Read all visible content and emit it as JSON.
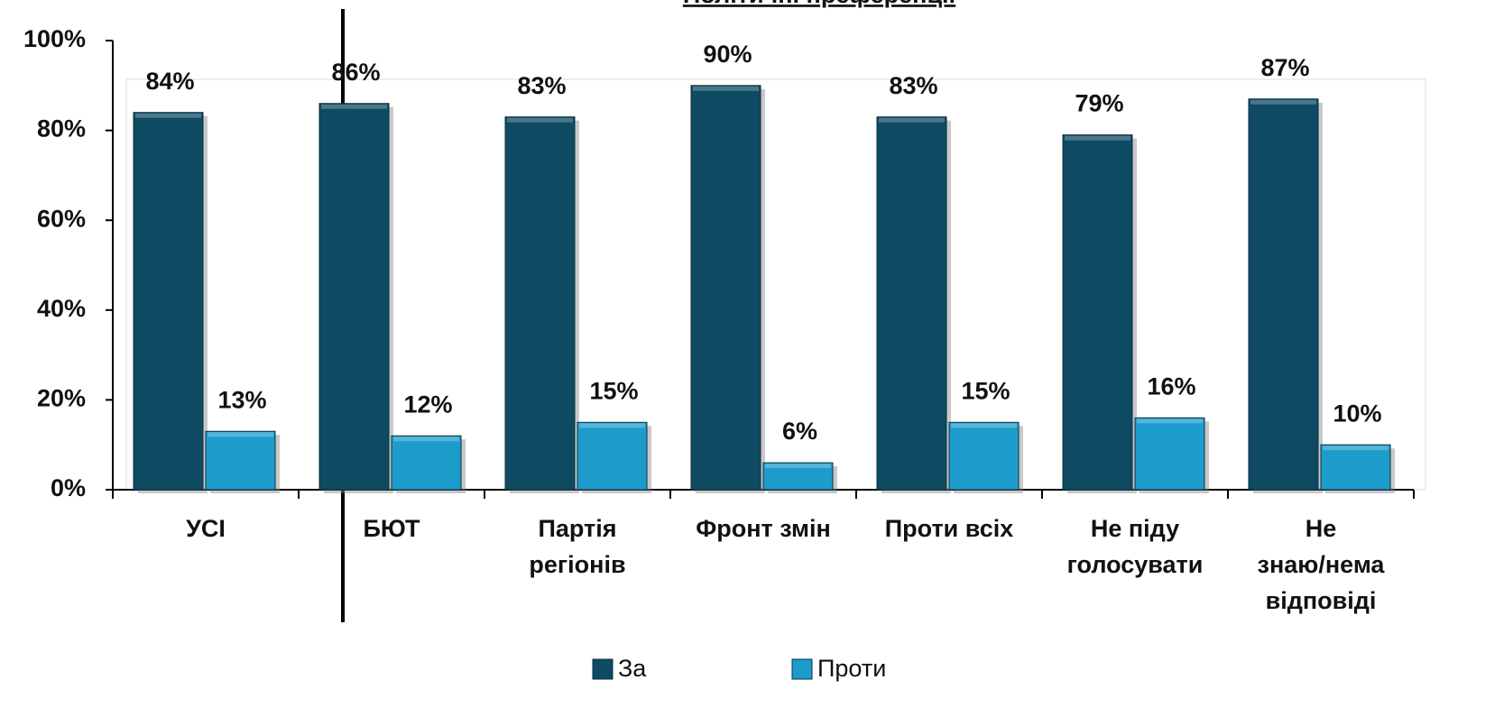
{
  "chart_data": {
    "type": "bar",
    "title": "Політичні преференції",
    "categories": [
      "УСІ",
      "БЮТ",
      "Партія\nрегіонів",
      "Фронт змін",
      "Проти всіх",
      "Не піду\nголосувати",
      "Не\nзнаю/нема\nвідповіді"
    ],
    "series": [
      {
        "name": "За",
        "color": "#0f4a63",
        "values": [
          84,
          86,
          83,
          90,
          83,
          79,
          87
        ],
        "value_labels": [
          "84%",
          "86%",
          "83%",
          "90%",
          "83%",
          "79%",
          "87%"
        ]
      },
      {
        "name": "Проти",
        "color": "#1d9ccb",
        "values": [
          13,
          12,
          15,
          6,
          15,
          16,
          10
        ],
        "value_labels": [
          "13%",
          "12%",
          "15%",
          "6%",
          "15%",
          "16%",
          "10%"
        ]
      }
    ],
    "ylim": [
      0,
      100
    ],
    "yticks": [
      {
        "value": 0,
        "label": "0%"
      },
      {
        "value": 20,
        "label": "20%"
      },
      {
        "value": 40,
        "label": "40%"
      },
      {
        "value": 60,
        "label": "60%"
      },
      {
        "value": 80,
        "label": "80%"
      },
      {
        "value": 100,
        "label": "100%"
      }
    ],
    "legend": "bottom"
  }
}
